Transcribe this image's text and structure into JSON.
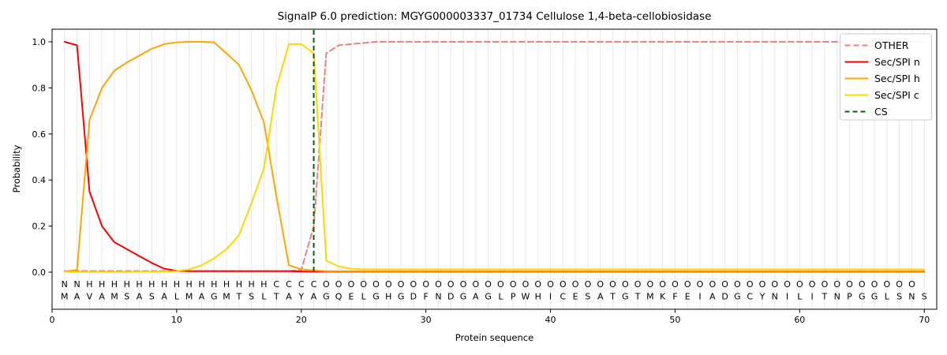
{
  "title": "SignalP 6.0 prediction: MGYG000003337_01734 Cellulose 1,4-beta-cellobiosidase",
  "axes": {
    "xlabel": "Protein sequence",
    "ylabel": "Probability",
    "xticks": [
      0,
      10,
      20,
      30,
      40,
      50,
      60,
      70
    ],
    "yticks": [
      "0.0",
      "0.2",
      "0.4",
      "0.6",
      "0.8",
      "1.0"
    ]
  },
  "legend": {
    "items": [
      {
        "label": "OTHER",
        "color": "#f08080",
        "dash": "7,4"
      },
      {
        "label": "Sec/SPI n",
        "color": "#ff0000",
        "dash": ""
      },
      {
        "label": "Sec/SPI h",
        "color": "#ffa500",
        "dash": ""
      },
      {
        "label": "Sec/SPI c",
        "color": "#ffd700",
        "dash": ""
      },
      {
        "label": "CS",
        "color": "#006400",
        "dash": "6,4"
      }
    ]
  },
  "chart_data": {
    "type": "line",
    "xlabel": "Protein sequence",
    "ylabel": "Probability",
    "xlim": [
      0,
      71
    ],
    "ylim": [
      -0.16,
      1.05
    ],
    "grid": "vertical line at every residue position",
    "legend_position": "upper right",
    "x": [
      1,
      2,
      3,
      4,
      5,
      6,
      7,
      8,
      9,
      10,
      11,
      12,
      13,
      14,
      15,
      16,
      17,
      18,
      19,
      20,
      21,
      22,
      23,
      24,
      25,
      26,
      27,
      28,
      29,
      30,
      31,
      32,
      33,
      34,
      35,
      36,
      37,
      38,
      39,
      40,
      41,
      42,
      43,
      44,
      45,
      46,
      47,
      48,
      49,
      50,
      51,
      52,
      53,
      54,
      55,
      56,
      57,
      58,
      59,
      60,
      61,
      62,
      63,
      64,
      65,
      66,
      67,
      68,
      69,
      70
    ],
    "series": [
      {
        "name": "OTHER",
        "color": "#f08080",
        "dash": "7,4",
        "values": [
          0.005,
          0.005,
          0.005,
          0.005,
          0.005,
          0.005,
          0.005,
          0.005,
          0.005,
          0.005,
          0.005,
          0.005,
          0.005,
          0.005,
          0.005,
          0.005,
          0.005,
          0.005,
          0.005,
          0.01,
          0.2,
          0.95,
          0.985,
          0.99,
          0.995,
          1.0,
          1.0,
          1.0,
          1.0,
          1.0,
          1.0,
          1.0,
          1.0,
          1.0,
          1.0,
          1.0,
          1.0,
          1.0,
          1.0,
          1.0,
          1.0,
          1.0,
          1.0,
          1.0,
          1.0,
          1.0,
          1.0,
          1.0,
          1.0,
          1.0,
          1.0,
          1.0,
          1.0,
          1.0,
          1.0,
          1.0,
          1.0,
          1.0,
          1.0,
          1.0,
          1.0,
          1.0,
          1.0,
          1.0,
          1.0,
          1.0,
          1.0,
          1.0,
          1.0,
          1.0
        ]
      },
      {
        "name": "Sec/SPI n",
        "color": "#ff0000",
        "dash": "",
        "values": [
          1.0,
          0.985,
          0.35,
          0.2,
          0.13,
          0.1,
          0.07,
          0.04,
          0.015,
          0.006,
          0.004,
          0.004,
          0.004,
          0.004,
          0.004,
          0.004,
          0.004,
          0.004,
          0.004,
          0.003,
          0.002,
          0.002,
          0.002,
          0.002,
          0.002,
          0.002,
          0.002,
          0.002,
          0.002,
          0.002,
          0.002,
          0.002,
          0.002,
          0.002,
          0.002,
          0.002,
          0.002,
          0.002,
          0.002,
          0.002,
          0.002,
          0.002,
          0.002,
          0.002,
          0.002,
          0.002,
          0.002,
          0.002,
          0.002,
          0.002,
          0.002,
          0.002,
          0.002,
          0.002,
          0.002,
          0.002,
          0.002,
          0.002,
          0.002,
          0.002,
          0.002,
          0.002,
          0.002,
          0.002,
          0.002,
          0.002,
          0.002,
          0.002,
          0.002,
          0.002
        ]
      },
      {
        "name": "Sec/SPI h",
        "color": "#ffa500",
        "dash": "",
        "values": [
          0.002,
          0.01,
          0.66,
          0.8,
          0.875,
          0.91,
          0.94,
          0.97,
          0.99,
          0.998,
          1.0,
          1.0,
          0.998,
          0.95,
          0.9,
          0.79,
          0.65,
          0.33,
          0.03,
          0.012,
          0.008,
          0.004,
          0.004,
          0.004,
          0.004,
          0.004,
          0.004,
          0.004,
          0.004,
          0.004,
          0.004,
          0.004,
          0.004,
          0.004,
          0.004,
          0.004,
          0.004,
          0.004,
          0.004,
          0.004,
          0.004,
          0.004,
          0.004,
          0.004,
          0.004,
          0.004,
          0.004,
          0.004,
          0.004,
          0.004,
          0.004,
          0.004,
          0.004,
          0.004,
          0.004,
          0.004,
          0.004,
          0.004,
          0.004,
          0.004,
          0.004,
          0.004,
          0.004,
          0.004,
          0.004,
          0.004,
          0.004,
          0.004,
          0.004,
          0.004
        ]
      },
      {
        "name": "Sec/SPI c",
        "color": "#ffd700",
        "dash": "",
        "values": [
          0.001,
          0.001,
          0.001,
          0.001,
          0.001,
          0.001,
          0.002,
          0.002,
          0.002,
          0.005,
          0.012,
          0.03,
          0.06,
          0.1,
          0.16,
          0.3,
          0.45,
          0.8,
          0.99,
          0.99,
          0.95,
          0.05,
          0.025,
          0.015,
          0.012,
          0.012,
          0.012,
          0.012,
          0.012,
          0.012,
          0.012,
          0.012,
          0.012,
          0.012,
          0.012,
          0.012,
          0.012,
          0.012,
          0.012,
          0.012,
          0.012,
          0.012,
          0.012,
          0.012,
          0.012,
          0.012,
          0.012,
          0.012,
          0.012,
          0.012,
          0.012,
          0.012,
          0.012,
          0.012,
          0.012,
          0.012,
          0.012,
          0.012,
          0.012,
          0.012,
          0.012,
          0.012,
          0.012,
          0.012,
          0.012,
          0.012,
          0.012,
          0.012,
          0.012,
          0.012
        ]
      }
    ],
    "cs_position": 21
  },
  "sequence": {
    "residues": "MAVAMSASALMAGMTSLTAYAGQELGHGDFNDGAGLPWHICESATGTMKFEIADGCYNILITNPGGLSNS",
    "region_labels": "NNHHHHHHHHHHHHHHHCCCCOOOOOOOOOOOOOOOOOOOOOOOOOOOOOOOOOOOOOOOOOOOOOOOO",
    "region_colors": {
      "N": "#ff0000",
      "H": "#ffa500",
      "C": "#ffd700",
      "O": "#8c8c8c"
    },
    "residue_color": "#3d3d3d"
  },
  "colors": {
    "grid": "#ebebeb",
    "axis": "#000000",
    "legend_border": "#cccccc",
    "background": "#ffffff"
  }
}
